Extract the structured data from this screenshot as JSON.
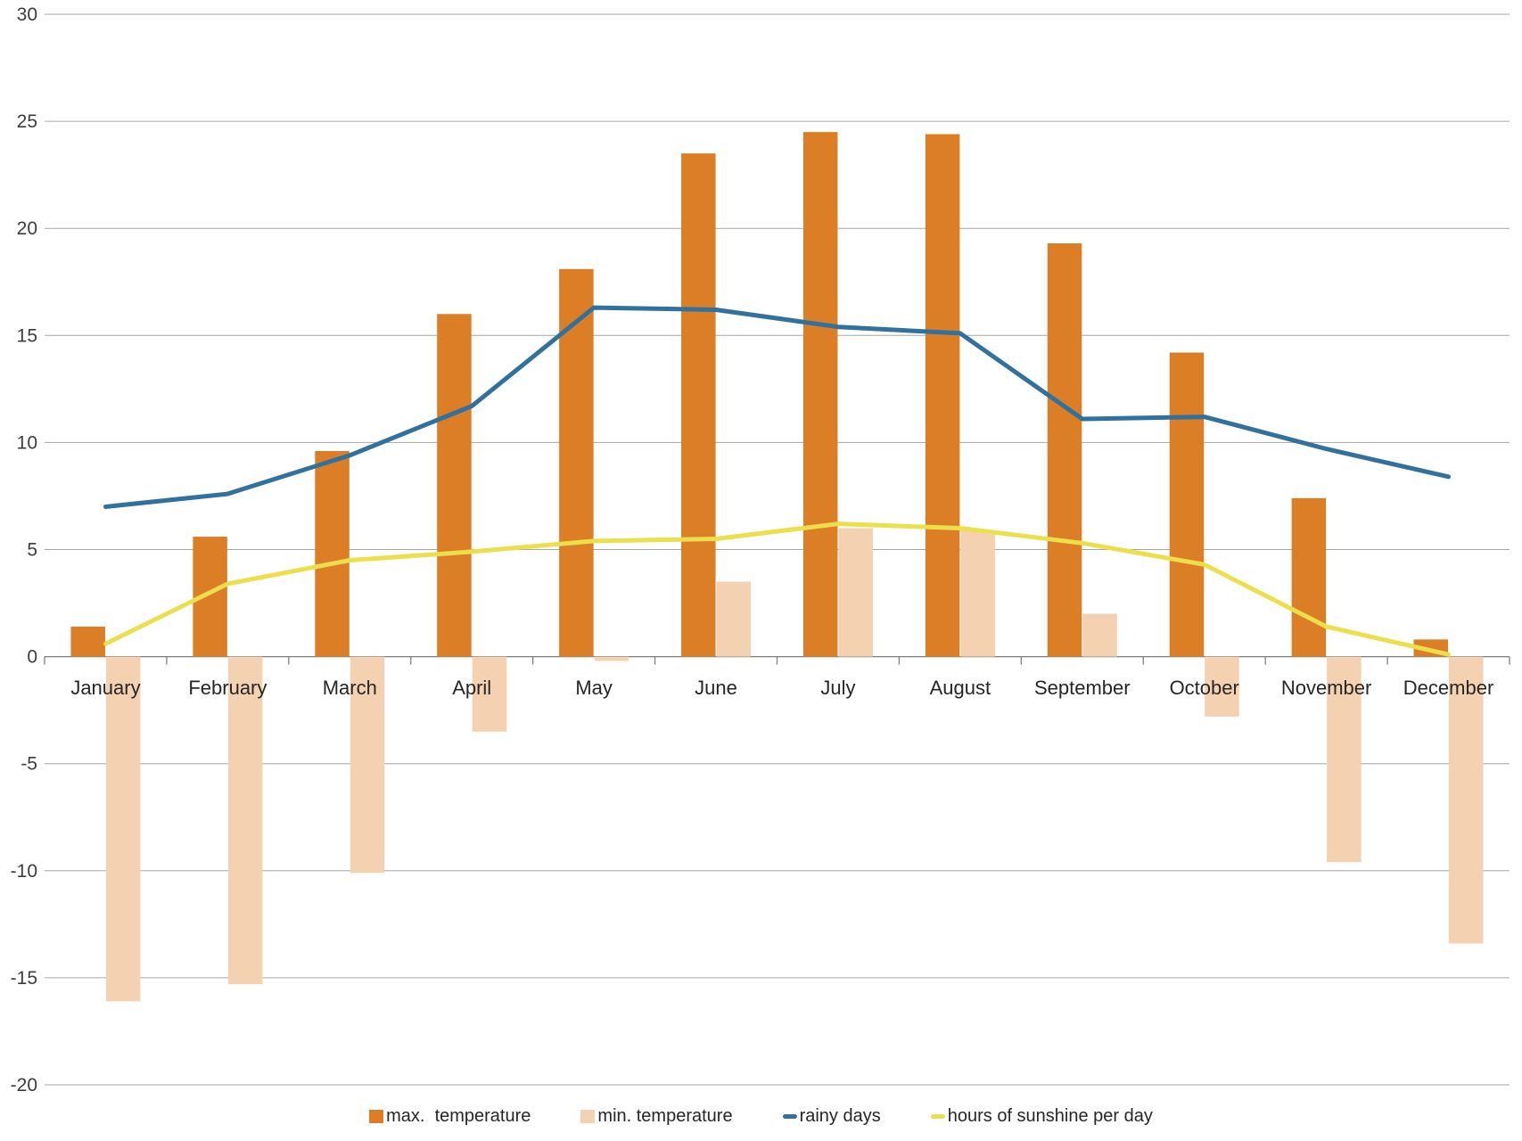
{
  "chart_data": {
    "type": "combo",
    "title": "",
    "xlabel": "",
    "ylabel": "",
    "categories": [
      "January",
      "February",
      "March",
      "April",
      "May",
      "June",
      "July",
      "August",
      "September",
      "October",
      "November",
      "December"
    ],
    "series": [
      {
        "name": "max.  temperature",
        "type": "bar",
        "color": "#DB7E26",
        "values": [
          1.4,
          5.6,
          9.6,
          16.0,
          18.1,
          23.5,
          24.5,
          24.4,
          19.3,
          14.2,
          7.4,
          0.8
        ]
      },
      {
        "name": "min. temperature",
        "type": "bar",
        "color": "#F3D1B1",
        "values": [
          -16.1,
          -15.3,
          -10.1,
          -3.5,
          -0.2,
          3.5,
          6.0,
          5.9,
          2.0,
          -2.8,
          -9.6,
          -13.4
        ]
      },
      {
        "name": "rainy days",
        "type": "line",
        "color": "#31719E",
        "values": [
          7.0,
          7.6,
          9.4,
          11.7,
          16.3,
          16.2,
          15.4,
          15.1,
          11.1,
          11.2,
          9.7,
          8.4
        ]
      },
      {
        "name": "hours of sunshine per day",
        "type": "line",
        "color": "#EBDF4C",
        "values": [
          0.6,
          3.4,
          4.5,
          4.9,
          5.4,
          5.5,
          6.2,
          6.0,
          5.3,
          4.3,
          1.4,
          0.1
        ]
      }
    ],
    "ylim": [
      -20,
      30
    ],
    "ytick_step": 5,
    "yticks": [
      30,
      25,
      20,
      15,
      10,
      5,
      0,
      -5,
      -10,
      -15,
      -20
    ],
    "grid": true,
    "gridline_color": "#A6A6A6",
    "axis_color": "#808080",
    "legend_position": "bottom"
  }
}
